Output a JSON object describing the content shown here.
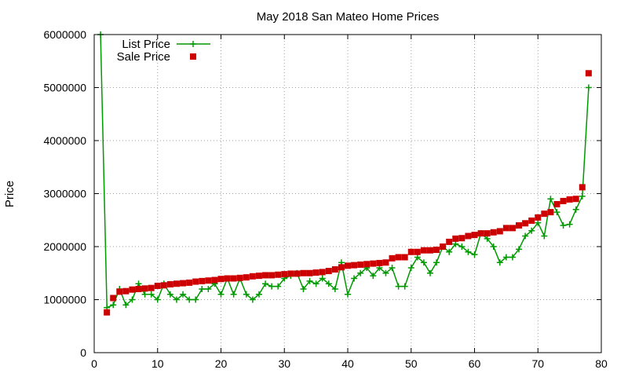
{
  "chart_data": {
    "type": "line",
    "title": "May 2018 San Mateo Home Prices",
    "xlabel": "",
    "ylabel": "Price",
    "xlim": [
      0,
      80
    ],
    "ylim": [
      0,
      6000000
    ],
    "x_ticks": [
      "0",
      "10",
      "20",
      "30",
      "40",
      "50",
      "60",
      "70",
      "80"
    ],
    "y_ticks": [
      "0",
      "1000000",
      "2000000",
      "3000000",
      "4000000",
      "5000000",
      "6000000"
    ],
    "grid": true,
    "legend_position": "top-left",
    "series": [
      {
        "name": "List Price",
        "style": "line+cross",
        "color": "#009900",
        "x": [
          1,
          2,
          3,
          4,
          5,
          6,
          7,
          8,
          9,
          10,
          11,
          12,
          13,
          14,
          15,
          16,
          17,
          18,
          19,
          20,
          21,
          22,
          23,
          24,
          25,
          26,
          27,
          28,
          29,
          30,
          31,
          32,
          33,
          34,
          35,
          36,
          37,
          38,
          39,
          40,
          41,
          42,
          43,
          44,
          45,
          46,
          47,
          48,
          49,
          50,
          51,
          52,
          53,
          54,
          55,
          56,
          57,
          58,
          59,
          60,
          61,
          62,
          63,
          64,
          65,
          66,
          67,
          68,
          69,
          70,
          71,
          72,
          73,
          74,
          75,
          76,
          77,
          78
        ],
        "y": [
          6000000,
          850000,
          900000,
          1200000,
          900000,
          1000000,
          1300000,
          1100000,
          1100000,
          1000000,
          1300000,
          1100000,
          1000000,
          1100000,
          1000000,
          1000000,
          1200000,
          1200000,
          1300000,
          1100000,
          1400000,
          1100000,
          1400000,
          1100000,
          1000000,
          1100000,
          1300000,
          1250000,
          1250000,
          1400000,
          1450000,
          1500000,
          1200000,
          1350000,
          1300000,
          1400000,
          1300000,
          1200000,
          1700000,
          1100000,
          1400000,
          1500000,
          1600000,
          1450000,
          1600000,
          1500000,
          1600000,
          1250000,
          1250000,
          1600000,
          1800000,
          1700000,
          1500000,
          1700000,
          2000000,
          1900000,
          2050000,
          2000000,
          1900000,
          1850000,
          2250000,
          2150000,
          2000000,
          1700000,
          1800000,
          1800000,
          1950000,
          2200000,
          2300000,
          2450000,
          2200000,
          2900000,
          2650000,
          2400000,
          2420000,
          2700000,
          2950000,
          5000000
        ]
      },
      {
        "name": "Sale Price",
        "style": "square-points",
        "color": "#cc0000",
        "x": [
          2,
          3,
          4,
          5,
          6,
          7,
          8,
          9,
          10,
          11,
          12,
          13,
          14,
          15,
          16,
          17,
          18,
          19,
          20,
          21,
          22,
          23,
          24,
          25,
          26,
          27,
          28,
          29,
          30,
          31,
          32,
          33,
          34,
          35,
          36,
          37,
          38,
          39,
          40,
          41,
          42,
          43,
          44,
          45,
          46,
          47,
          48,
          49,
          50,
          51,
          52,
          53,
          54,
          55,
          56,
          57,
          58,
          59,
          60,
          61,
          62,
          63,
          64,
          65,
          66,
          67,
          68,
          69,
          70,
          71,
          72,
          73,
          74,
          75,
          76,
          77,
          78
        ],
        "y": [
          760000,
          1030000,
          1150000,
          1160000,
          1190000,
          1200000,
          1210000,
          1220000,
          1260000,
          1270000,
          1290000,
          1300000,
          1310000,
          1320000,
          1340000,
          1350000,
          1360000,
          1370000,
          1390000,
          1400000,
          1400000,
          1410000,
          1420000,
          1440000,
          1450000,
          1460000,
          1460000,
          1470000,
          1480000,
          1490000,
          1490000,
          1500000,
          1500000,
          1510000,
          1520000,
          1540000,
          1570000,
          1610000,
          1640000,
          1650000,
          1660000,
          1670000,
          1680000,
          1690000,
          1700000,
          1780000,
          1800000,
          1800000,
          1900000,
          1900000,
          1930000,
          1930000,
          1940000,
          2000000,
          2090000,
          2150000,
          2160000,
          2200000,
          2220000,
          2250000,
          2250000,
          2270000,
          2290000,
          2350000,
          2350000,
          2400000,
          2440000,
          2490000,
          2550000,
          2620000,
          2650000,
          2800000,
          2860000,
          2890000,
          2900000,
          3120000,
          5270000
        ]
      }
    ]
  }
}
